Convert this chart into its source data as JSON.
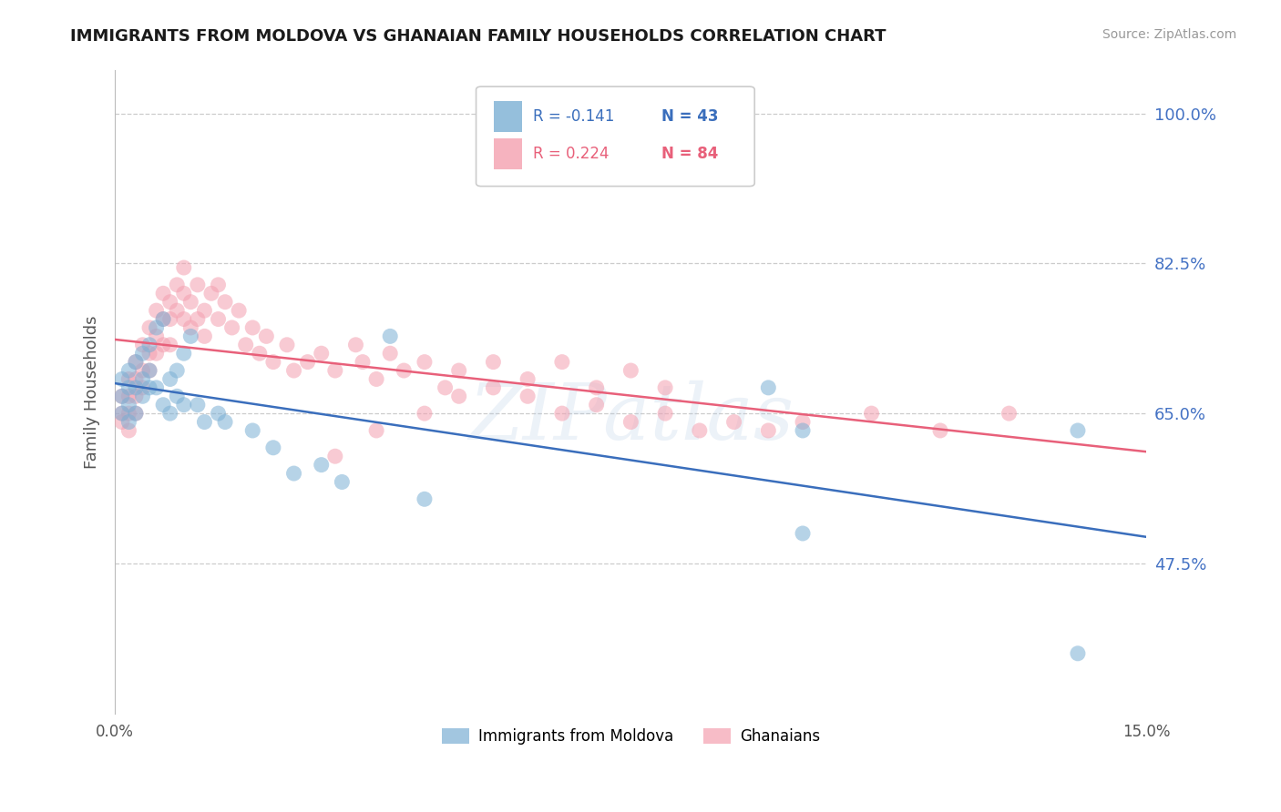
{
  "title": "IMMIGRANTS FROM MOLDOVA VS GHANAIAN FAMILY HOUSEHOLDS CORRELATION CHART",
  "source": "Source: ZipAtlas.com",
  "ylabel": "Family Households",
  "ytick_labels": [
    "100.0%",
    "82.5%",
    "65.0%",
    "47.5%"
  ],
  "ytick_values": [
    1.0,
    0.825,
    0.65,
    0.475
  ],
  "xlim": [
    0.0,
    0.15
  ],
  "ylim": [
    0.3,
    1.05
  ],
  "title_color": "#1a1a1a",
  "source_color": "#999999",
  "ytick_color": "#4472c4",
  "watermark": "ZIPatlas",
  "blue_color": "#7bafd4",
  "pink_color": "#f4a0b0",
  "blue_line_color": "#3a6ebc",
  "pink_line_color": "#e8607a",
  "legend_label1": "R = -0.141",
  "legend_n1": "N = 43",
  "legend_label2": "R = 0.224",
  "legend_n2": "N = 84",
  "moldova_scatter_x": [
    0.001,
    0.001,
    0.001,
    0.002,
    0.002,
    0.002,
    0.002,
    0.003,
    0.003,
    0.003,
    0.004,
    0.004,
    0.004,
    0.005,
    0.005,
    0.005,
    0.006,
    0.006,
    0.007,
    0.007,
    0.008,
    0.008,
    0.009,
    0.009,
    0.01,
    0.01,
    0.011,
    0.012,
    0.013,
    0.015,
    0.016,
    0.02,
    0.023,
    0.026,
    0.03,
    0.033,
    0.04,
    0.045,
    0.095,
    0.1,
    0.1,
    0.14,
    0.14
  ],
  "moldova_scatter_y": [
    0.69,
    0.67,
    0.65,
    0.7,
    0.68,
    0.66,
    0.64,
    0.71,
    0.68,
    0.65,
    0.72,
    0.69,
    0.67,
    0.73,
    0.7,
    0.68,
    0.75,
    0.68,
    0.76,
    0.66,
    0.69,
    0.65,
    0.7,
    0.67,
    0.72,
    0.66,
    0.74,
    0.66,
    0.64,
    0.65,
    0.64,
    0.63,
    0.61,
    0.58,
    0.59,
    0.57,
    0.74,
    0.55,
    0.68,
    0.63,
    0.51,
    0.63,
    0.37
  ],
  "ghana_scatter_x": [
    0.001,
    0.001,
    0.001,
    0.002,
    0.002,
    0.002,
    0.002,
    0.003,
    0.003,
    0.003,
    0.003,
    0.004,
    0.004,
    0.004,
    0.005,
    0.005,
    0.005,
    0.006,
    0.006,
    0.006,
    0.007,
    0.007,
    0.007,
    0.008,
    0.008,
    0.008,
    0.009,
    0.009,
    0.01,
    0.01,
    0.01,
    0.011,
    0.011,
    0.012,
    0.012,
    0.013,
    0.013,
    0.014,
    0.015,
    0.015,
    0.016,
    0.017,
    0.018,
    0.019,
    0.02,
    0.021,
    0.022,
    0.023,
    0.025,
    0.026,
    0.028,
    0.03,
    0.032,
    0.035,
    0.036,
    0.038,
    0.04,
    0.042,
    0.045,
    0.048,
    0.05,
    0.055,
    0.06,
    0.065,
    0.07,
    0.075,
    0.08,
    0.032,
    0.038,
    0.045,
    0.05,
    0.055,
    0.06,
    0.065,
    0.07,
    0.075,
    0.08,
    0.085,
    0.09,
    0.095,
    0.1,
    0.11,
    0.12,
    0.13
  ],
  "ghana_scatter_y": [
    0.67,
    0.65,
    0.64,
    0.69,
    0.67,
    0.65,
    0.63,
    0.71,
    0.69,
    0.67,
    0.65,
    0.73,
    0.7,
    0.68,
    0.75,
    0.72,
    0.7,
    0.77,
    0.74,
    0.72,
    0.79,
    0.76,
    0.73,
    0.78,
    0.76,
    0.73,
    0.8,
    0.77,
    0.82,
    0.79,
    0.76,
    0.78,
    0.75,
    0.8,
    0.76,
    0.77,
    0.74,
    0.79,
    0.8,
    0.76,
    0.78,
    0.75,
    0.77,
    0.73,
    0.75,
    0.72,
    0.74,
    0.71,
    0.73,
    0.7,
    0.71,
    0.72,
    0.7,
    0.73,
    0.71,
    0.69,
    0.72,
    0.7,
    0.71,
    0.68,
    0.7,
    0.71,
    0.69,
    0.71,
    0.68,
    0.7,
    0.68,
    0.6,
    0.63,
    0.65,
    0.67,
    0.68,
    0.67,
    0.65,
    0.66,
    0.64,
    0.65,
    0.63,
    0.64,
    0.63,
    0.64,
    0.65,
    0.63,
    0.65
  ]
}
